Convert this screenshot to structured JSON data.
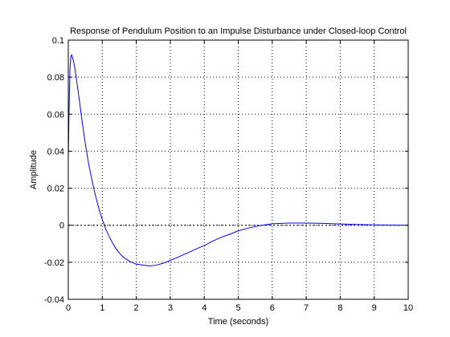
{
  "chart_data": {
    "type": "line",
    "title": "Response of Pendulum Position to an Impulse Disturbance under Closed-loop Control",
    "xlabel": "Time (seconds)",
    "ylabel": "Amplitude",
    "xlim": [
      0,
      10
    ],
    "ylim": [
      -0.04,
      0.1
    ],
    "x_ticks": [
      "0",
      "1",
      "2",
      "3",
      "4",
      "5",
      "6",
      "7",
      "8",
      "9",
      "10"
    ],
    "y_ticks": [
      "-0.04",
      "-0.02",
      "0",
      "0.02",
      "0.04",
      "0.06",
      "0.08",
      "0.1"
    ],
    "grid": true,
    "series": [
      {
        "color": "#0000ff",
        "x": [
          0,
          0.02,
          0.05,
          0.08,
          0.1,
          0.15,
          0.2,
          0.3,
          0.4,
          0.5,
          0.6,
          0.7,
          0.8,
          0.9,
          1.0,
          1.1,
          1.2,
          1.3,
          1.4,
          1.5,
          1.6,
          1.8,
          2.0,
          2.2,
          2.4,
          2.6,
          2.8,
          3.0,
          3.2,
          3.5,
          3.8,
          4.0,
          4.2,
          4.5,
          4.8,
          5.0,
          5.3,
          5.6,
          6.0,
          6.5,
          7.0,
          7.5,
          8.0,
          8.5,
          9.0,
          9.5,
          10.0
        ],
        "y": [
          0.035,
          0.06,
          0.085,
          0.0915,
          0.092,
          0.089,
          0.084,
          0.071,
          0.057,
          0.044,
          0.033,
          0.024,
          0.016,
          0.009,
          0.003,
          -0.002,
          -0.006,
          -0.0095,
          -0.0125,
          -0.015,
          -0.017,
          -0.0195,
          -0.021,
          -0.0215,
          -0.022,
          -0.0215,
          -0.0205,
          -0.019,
          -0.0175,
          -0.015,
          -0.0125,
          -0.011,
          -0.009,
          -0.0065,
          -0.0045,
          -0.003,
          -0.0015,
          -0.0003,
          0.0008,
          0.0012,
          0.0012,
          0.001,
          0.0007,
          0.0004,
          0.0002,
          0.0001,
          0.0
        ]
      }
    ],
    "zero_line_color": "#000000"
  }
}
